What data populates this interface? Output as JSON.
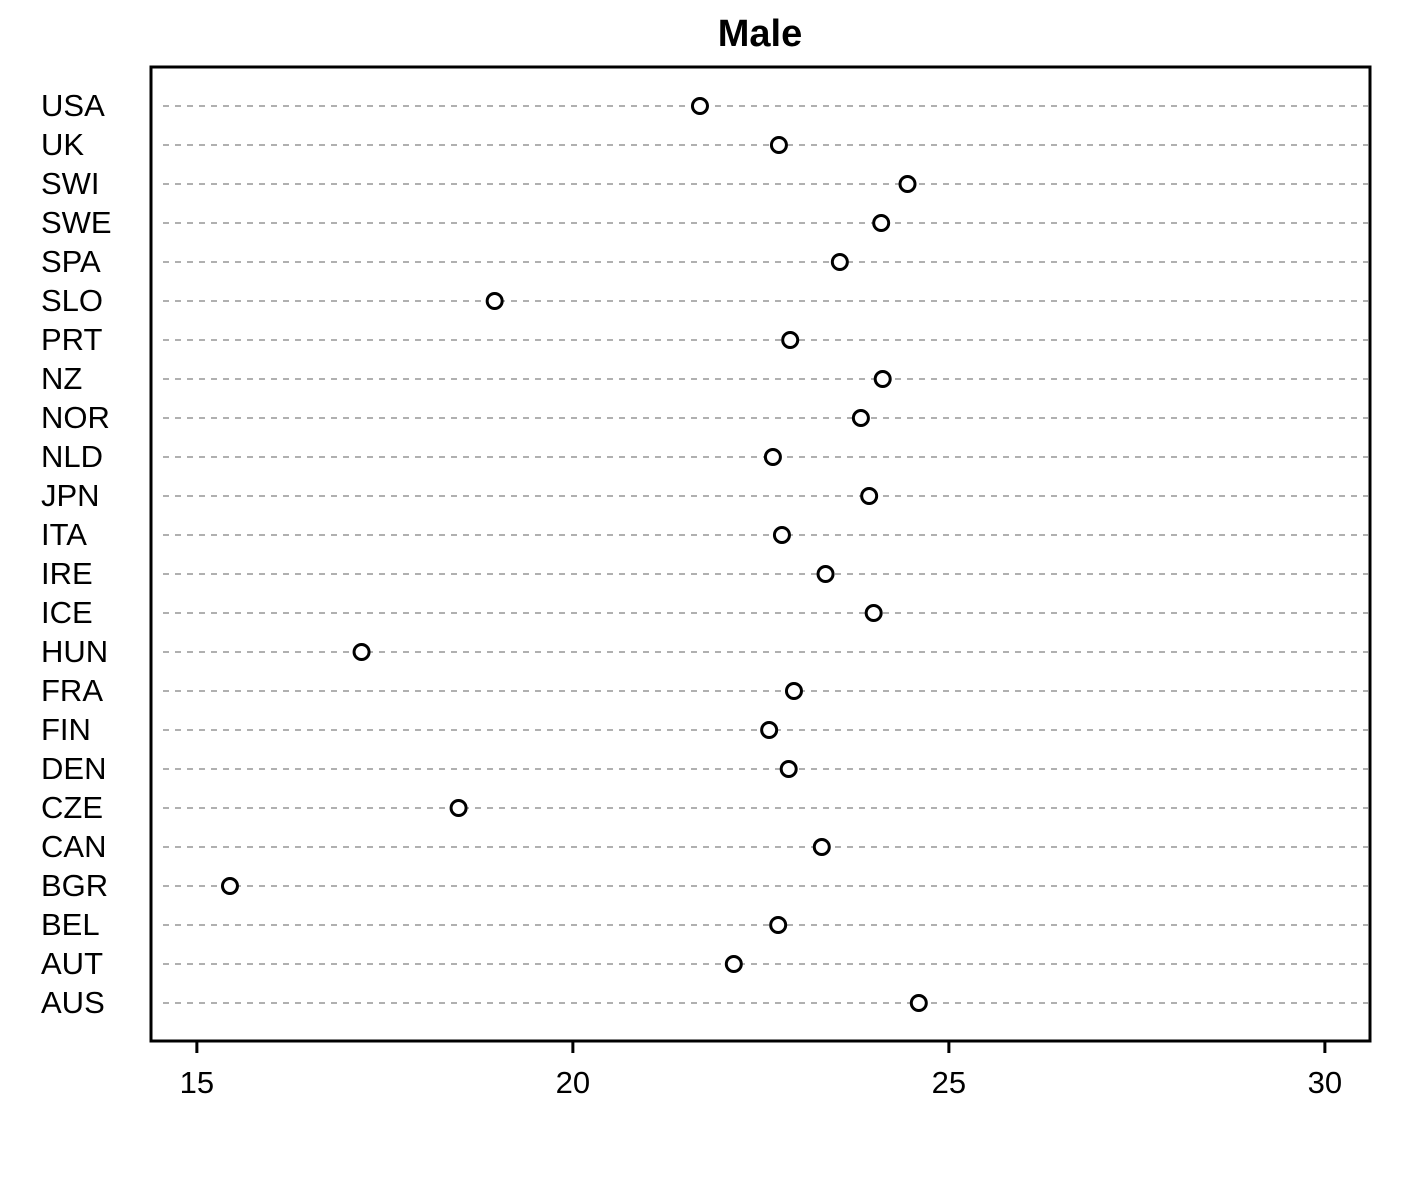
{
  "chart_data": {
    "type": "dot",
    "title": "Male",
    "categories": [
      "USA",
      "UK",
      "SWI",
      "SWE",
      "SPA",
      "SLO",
      "PRT",
      "NZ",
      "NOR",
      "NLD",
      "JPN",
      "ITA",
      "IRE",
      "ICE",
      "HUN",
      "FRA",
      "FIN",
      "DEN",
      "CZE",
      "CAN",
      "BGR",
      "BEL",
      "AUT",
      "AUS"
    ],
    "values": [
      21.69,
      22.74,
      24.45,
      24.1,
      23.55,
      18.96,
      22.89,
      24.12,
      23.83,
      22.66,
      23.94,
      22.78,
      23.36,
      24.0,
      17.19,
      22.94,
      22.61,
      22.87,
      18.48,
      23.31,
      15.44,
      22.73,
      22.14,
      24.6
    ],
    "color": "#000000",
    "xlim": [
      14.39,
      30.6
    ],
    "xticks": [
      15,
      20,
      25,
      30
    ],
    "grid": true
  }
}
